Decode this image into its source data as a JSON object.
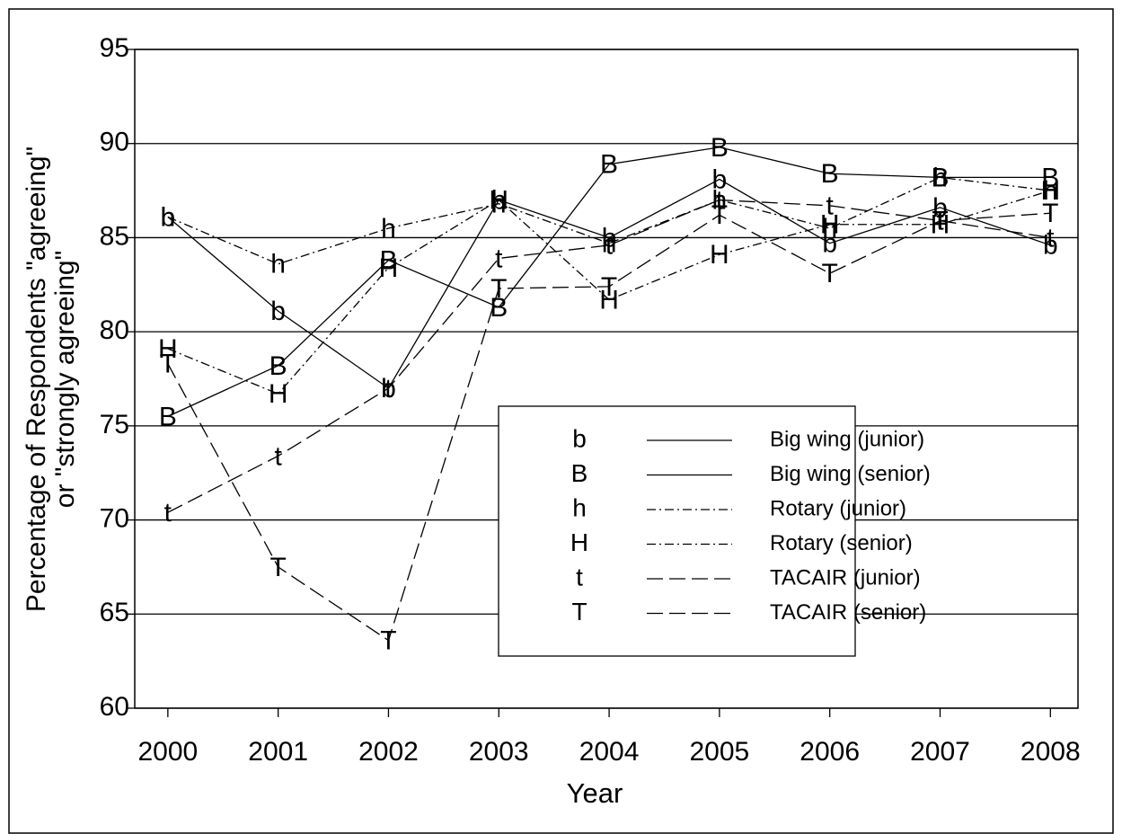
{
  "chart_data": {
    "type": "line",
    "xlabel": "Year",
    "ylabel": [
      "Percentage of Respondents \"agreeing\"",
      "or \"strongly agreeing\""
    ],
    "x": [
      2000,
      2001,
      2002,
      2003,
      2004,
      2005,
      2006,
      2007,
      2008
    ],
    "xlim": [
      1999.7,
      2008.25
    ],
    "xticks": [
      2000,
      2001,
      2002,
      2003,
      2004,
      2005,
      2006,
      2007,
      2008
    ],
    "ylim": [
      60,
      95
    ],
    "yticks": [
      60,
      65,
      70,
      75,
      80,
      85,
      90,
      95
    ],
    "grid": true,
    "legend": "lower right",
    "series": [
      {
        "name": "Big wing (junior)",
        "marker": "b",
        "linestyle": "solid",
        "color": "#000000",
        "values": [
          86.1,
          81.1,
          77.0,
          87.0,
          85.0,
          88.1,
          84.7,
          86.6,
          84.6
        ]
      },
      {
        "name": "Big wing (senior)",
        "marker": "B",
        "linestyle": "solid",
        "color": "#000000",
        "values": [
          75.5,
          78.2,
          83.8,
          81.3,
          88.9,
          89.8,
          88.4,
          88.2,
          88.2
        ]
      },
      {
        "name": "Rotary (junior)",
        "marker": "h",
        "linestyle": "dashdot",
        "color": "#000000",
        "values": [
          86.1,
          83.6,
          85.5,
          86.8,
          84.7,
          87.0,
          85.5,
          88.2,
          87.5
        ]
      },
      {
        "name": "Rotary (senior)",
        "marker": "H",
        "linestyle": "dashdot",
        "color": "#000000",
        "values": [
          79.1,
          76.7,
          83.4,
          87.0,
          81.7,
          84.1,
          85.7,
          85.7,
          87.5
        ]
      },
      {
        "name": "TACAIR (junior)",
        "marker": "t",
        "linestyle": "dashed",
        "color": "#000000",
        "values": [
          70.4,
          73.4,
          77.0,
          83.9,
          84.6,
          87.0,
          86.7,
          85.9,
          85.0
        ]
      },
      {
        "name": "TACAIR (senior)",
        "marker": "T",
        "linestyle": "dashed",
        "color": "#000000",
        "values": [
          78.3,
          67.5,
          63.6,
          82.3,
          82.4,
          86.2,
          83.1,
          85.9,
          86.3
        ]
      }
    ]
  }
}
